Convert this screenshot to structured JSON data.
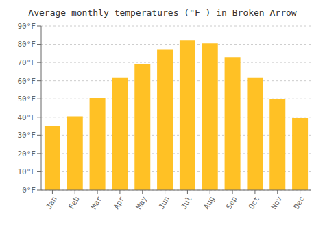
{
  "chart_data": {
    "type": "bar",
    "title": "Average monthly temperatures (°F ) in Broken Arrow",
    "categories": [
      "Jan",
      "Feb",
      "Mar",
      "Apr",
      "May",
      "Jun",
      "Jul",
      "Aug",
      "Sep",
      "Oct",
      "Nov",
      "Dec"
    ],
    "values": [
      35,
      40.5,
      50.5,
      61.5,
      69,
      77,
      82,
      80.5,
      73,
      61.5,
      50,
      39.5
    ],
    "color": "#FFC125",
    "ylim": [
      0,
      90
    ],
    "yticks": [
      {
        "value": 0,
        "label": "0°F"
      },
      {
        "value": 10,
        "label": "10°F"
      },
      {
        "value": 20,
        "label": "20°F"
      },
      {
        "value": 30,
        "label": "30°F"
      },
      {
        "value": 40,
        "label": "40°F"
      },
      {
        "value": 50,
        "label": "50°F"
      },
      {
        "value": 60,
        "label": "60°F"
      },
      {
        "value": 70,
        "label": "70°F"
      },
      {
        "value": 80,
        "label": "80°F"
      },
      {
        "value": 90,
        "label": "90°F"
      }
    ],
    "grid": true
  }
}
